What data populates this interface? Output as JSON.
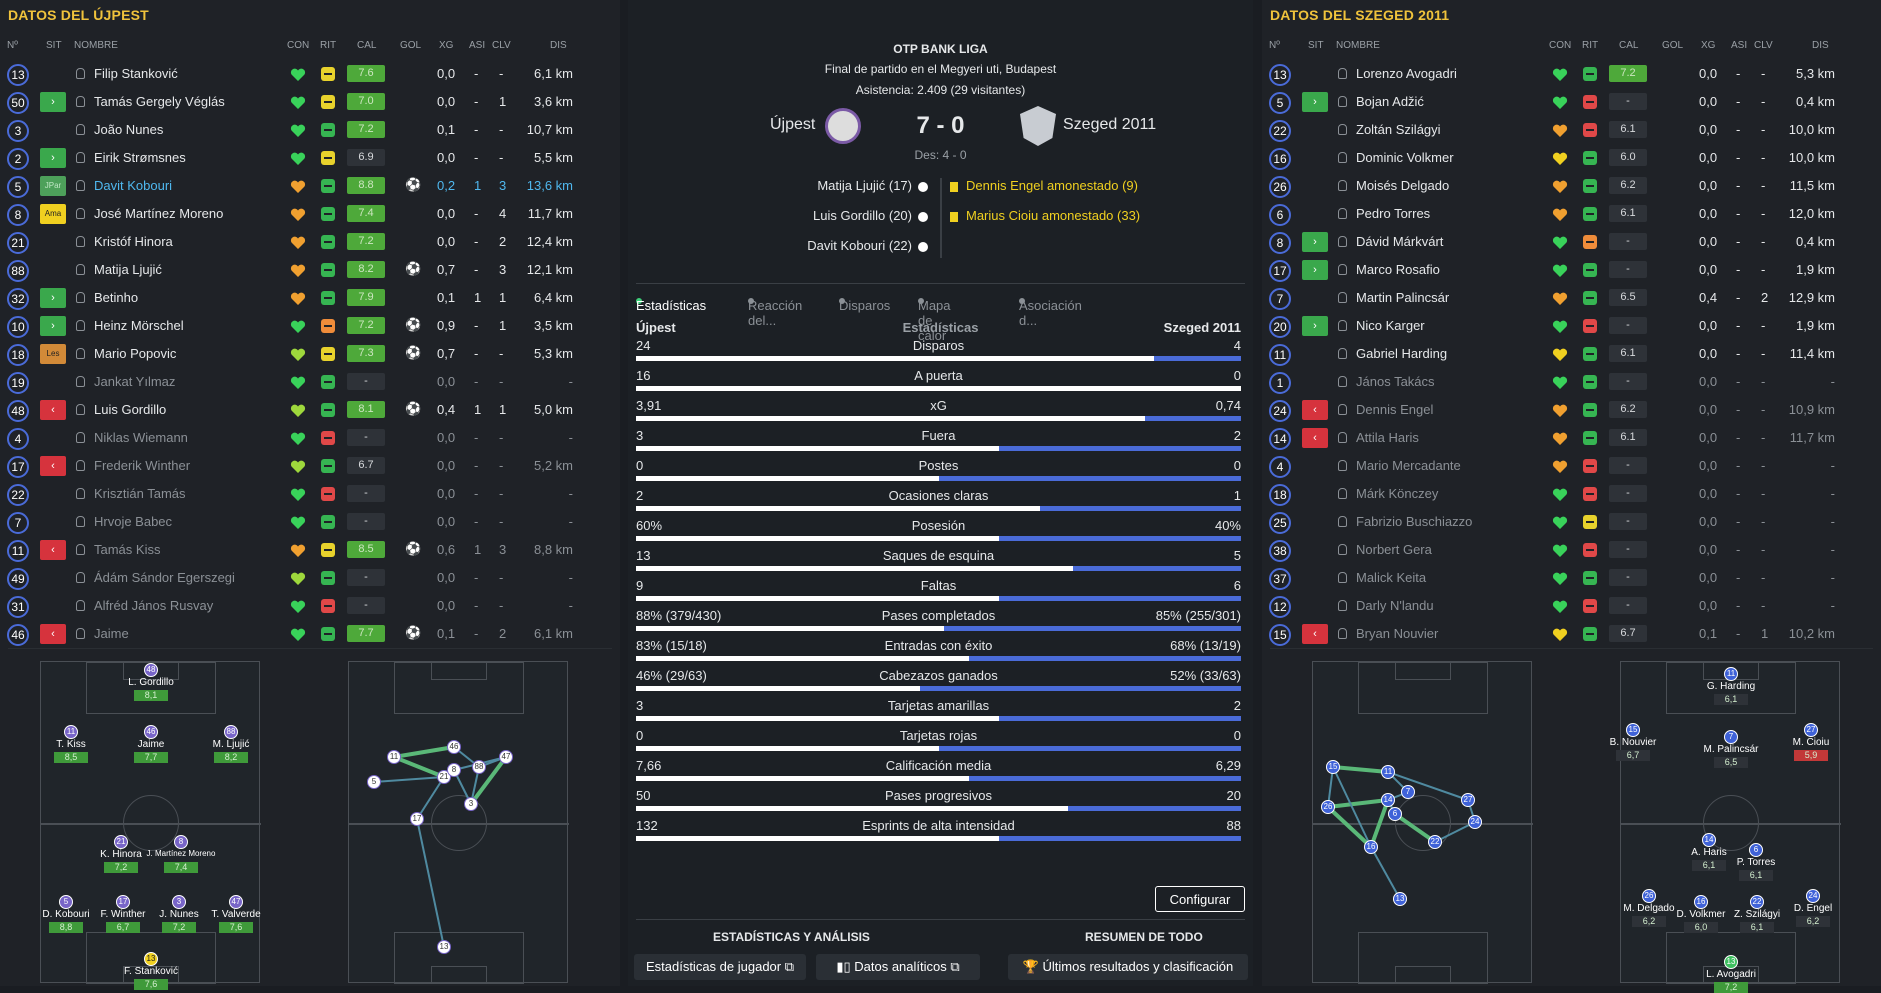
{
  "left": {
    "title": "DATOS DEL ÚJPEST",
    "headers": {
      "no": "Nº",
      "sit": "SIT",
      "name": "NOMBRE",
      "con": "CON",
      "rit": "RIT",
      "cal": "CAL",
      "gol": "GOL",
      "xg": "XG",
      "asi": "ASI",
      "clv": "CLV",
      "dis": "DIS"
    },
    "players": [
      {
        "num": "13",
        "sit": "",
        "name": "Filip Stanković",
        "con": "green",
        "rit": "y",
        "cal": "7.6",
        "gol": "",
        "xg": "0,0",
        "asi": "-",
        "clv": "-",
        "dis": "6,1 km",
        "dim": false
      },
      {
        "num": "50",
        "sit": "in",
        "name": "Tamás Gergely Véglás",
        "con": "green",
        "rit": "y",
        "cal": "7.0",
        "gol": "",
        "xg": "0,0",
        "asi": "-",
        "clv": "1",
        "dis": "3,6 km",
        "dim": false
      },
      {
        "num": "3",
        "sit": "",
        "name": "João Nunes",
        "con": "green",
        "rit": "g",
        "cal": "7.2",
        "gol": "",
        "xg": "0,1",
        "asi": "-",
        "clv": "-",
        "dis": "10,7 km",
        "dim": false
      },
      {
        "num": "2",
        "sit": "in",
        "name": "Eirik Strømsnes",
        "con": "green",
        "rit": "y",
        "cal": "6.9",
        "calc": "d",
        "gol": "",
        "xg": "0,0",
        "asi": "-",
        "clv": "-",
        "dis": "5,5 km",
        "dim": false
      },
      {
        "num": "5",
        "sit": "JPar",
        "name": "Davit Kobouri",
        "con": "orange",
        "rit": "g",
        "cal": "8.8",
        "gol": "⚽",
        "xg": "0,2",
        "asi": "1",
        "clv": "3",
        "dis": "13,6 km",
        "dim": false,
        "hl": true
      },
      {
        "num": "8",
        "sit": "Ama",
        "name": "José Martínez Moreno",
        "con": "orange",
        "rit": "g",
        "cal": "7.4",
        "gol": "",
        "xg": "0,0",
        "asi": "-",
        "clv": "4",
        "dis": "11,7 km",
        "dim": false
      },
      {
        "num": "21",
        "sit": "",
        "name": "Kristóf Hinora",
        "con": "orange",
        "rit": "g",
        "cal": "7.2",
        "gol": "",
        "xg": "0,0",
        "asi": "-",
        "clv": "2",
        "dis": "12,4 km",
        "dim": false
      },
      {
        "num": "88",
        "sit": "",
        "name": "Matija Ljujić",
        "con": "orange",
        "rit": "g",
        "cal": "8.2",
        "gol": "⚽",
        "xg": "0,7",
        "asi": "-",
        "clv": "3",
        "dis": "12,1 km",
        "dim": false
      },
      {
        "num": "32",
        "sit": "in",
        "name": "Betinho",
        "con": "orange",
        "rit": "g",
        "cal": "7.9",
        "gol": "",
        "xg": "0,1",
        "asi": "1",
        "clv": "1",
        "dis": "6,4 km",
        "dim": false
      },
      {
        "num": "10",
        "sit": "in",
        "name": "Heinz Mörschel",
        "con": "green",
        "rit": "o",
        "cal": "7.2",
        "gol": "⚽",
        "xg": "0,9",
        "asi": "-",
        "clv": "1",
        "dis": "3,5 km",
        "dim": false
      },
      {
        "num": "18",
        "sit": "Les",
        "name": "Mario Popovic",
        "con": "lime",
        "rit": "y",
        "cal": "7.3",
        "gol": "⚽",
        "xg": "0,7",
        "asi": "-",
        "clv": "-",
        "dis": "5,3 km",
        "dim": false
      },
      {
        "num": "19",
        "sit": "",
        "name": "Jankat Yılmaz",
        "con": "green",
        "rit": "g",
        "cal": "-",
        "calc": "d",
        "gol": "",
        "xg": "0,0",
        "asi": "-",
        "clv": "-",
        "dis": "-",
        "dim": true
      },
      {
        "num": "48",
        "sit": "out",
        "name": "Luis Gordillo",
        "con": "lime",
        "rit": "g",
        "cal": "8.1",
        "gol": "⚽",
        "xg": "0,4",
        "asi": "1",
        "clv": "1",
        "dis": "5,0 km",
        "dim": false
      },
      {
        "num": "4",
        "sit": "",
        "name": "Niklas Wiemann",
        "con": "green",
        "rit": "r",
        "cal": "-",
        "calc": "d",
        "gol": "",
        "xg": "0,0",
        "asi": "-",
        "clv": "-",
        "dis": "-",
        "dim": true
      },
      {
        "num": "17",
        "sit": "out",
        "name": "Frederik Winther",
        "con": "lime",
        "rit": "g",
        "cal": "6.7",
        "calc": "d",
        "gol": "",
        "xg": "0,0",
        "asi": "-",
        "clv": "-",
        "dis": "5,2 km",
        "dim": true
      },
      {
        "num": "22",
        "sit": "",
        "name": "Krisztián Tamás",
        "con": "green",
        "rit": "r",
        "cal": "-",
        "calc": "d",
        "gol": "",
        "xg": "0,0",
        "asi": "-",
        "clv": "-",
        "dis": "-",
        "dim": true
      },
      {
        "num": "7",
        "sit": "",
        "name": "Hrvoje Babec",
        "con": "green",
        "rit": "g",
        "cal": "-",
        "calc": "d",
        "gol": "",
        "xg": "0,0",
        "asi": "-",
        "clv": "-",
        "dis": "-",
        "dim": true
      },
      {
        "num": "11",
        "sit": "out",
        "name": "Tamás Kiss",
        "con": "orange",
        "rit": "y",
        "cal": "8.5",
        "gol": "⚽",
        "xg": "0,6",
        "asi": "1",
        "clv": "3",
        "dis": "8,8 km",
        "dim": true
      },
      {
        "num": "49",
        "sit": "",
        "name": "Ádám Sándor Egerszegi",
        "con": "lime",
        "rit": "g",
        "cal": "-",
        "calc": "d",
        "gol": "",
        "xg": "0,0",
        "asi": "-",
        "clv": "-",
        "dis": "-",
        "dim": true
      },
      {
        "num": "31",
        "sit": "",
        "name": "Alfréd János Rusvay",
        "con": "green",
        "rit": "r",
        "cal": "-",
        "calc": "d",
        "gol": "",
        "xg": "0,0",
        "asi": "-",
        "clv": "-",
        "dis": "-",
        "dim": true
      },
      {
        "num": "46",
        "sit": "out",
        "name": "Jaime",
        "con": "green",
        "rit": "g",
        "cal": "7.7",
        "gol": "⚽",
        "xg": "0,1",
        "asi": "-",
        "clv": "2",
        "dis": "6,1 km",
        "dim": true
      }
    ],
    "formation": [
      {
        "num": "48",
        "name": "L. Gordillo",
        "rat": "8,1"
      },
      {
        "num": "11",
        "name": "T. Kiss",
        "rat": "8,5"
      },
      {
        "num": "46",
        "name": "Jaime",
        "rat": "7,7"
      },
      {
        "num": "88",
        "name": "M. Ljujić",
        "rat": "8,2"
      },
      {
        "num": "21",
        "name": "K. Hinora",
        "rat": "7,2"
      },
      {
        "num": "8",
        "name": "J. Martínez Moreno",
        "rat": "7,4"
      },
      {
        "num": "5",
        "name": "D. Kobouri",
        "rat": "8,8"
      },
      {
        "num": "17",
        "name": "F. Winther",
        "rat": "6,7"
      },
      {
        "num": "3",
        "name": "J. Nunes",
        "rat": "7,2"
      },
      {
        "num": "47",
        "name": "T. Valverde",
        "rat": "7,6"
      },
      {
        "num": "13",
        "name": "F. Stanković",
        "rat": "7,6"
      }
    ],
    "passmap": [
      "11",
      "46",
      "88",
      "47",
      "21",
      "8",
      "5",
      "3",
      "17",
      "13"
    ]
  },
  "center": {
    "league": "OTP BANK LIGA",
    "subtitle": "Final de partido en el Megyeri uti, Budapest",
    "attendance": "Asistencia: 2.409 (29 visitantes)",
    "home": "Újpest",
    "away": "Szeged 2011",
    "score": "7 - 0",
    "ht": "Des: 4 - 0",
    "home_events": [
      "Matija Ljujić (17)",
      "Luis Gordillo (20)",
      "Davit Kobouri (22)"
    ],
    "away_events": [
      "Dennis Engel amonestado (9)",
      "Marius Cioiu amonestado (33)"
    ],
    "tabs": [
      "Estadísticas",
      "Reacción del...",
      "Disparos",
      "Mapa de calor",
      "Asociación d..."
    ],
    "stats_home": "Újpest",
    "stats_title": "Estadísticas",
    "stats_away": "Szeged 2011",
    "stats": [
      {
        "l": "24",
        "label": "Disparos",
        "r": "4",
        "frac": 0.857
      },
      {
        "l": "16",
        "label": "A puerta",
        "r": "0",
        "frac": 1.0
      },
      {
        "l": "3,91",
        "label": "xG",
        "r": "0,74",
        "frac": 0.841
      },
      {
        "l": "3",
        "label": "Fuera",
        "r": "2",
        "frac": 0.6
      },
      {
        "l": "0",
        "label": "Postes",
        "r": "0",
        "frac": 0.5
      },
      {
        "l": "2",
        "label": "Ocasiones claras",
        "r": "1",
        "frac": 0.667
      },
      {
        "l": "60%",
        "label": "Posesión",
        "r": "40%",
        "frac": 0.6
      },
      {
        "l": "13",
        "label": "Saques de esquina",
        "r": "5",
        "frac": 0.722
      },
      {
        "l": "9",
        "label": "Faltas",
        "r": "6",
        "frac": 0.6
      },
      {
        "l": "88% (379/430)",
        "label": "Pases completados",
        "r": "85% (255/301)",
        "frac": 0.509
      },
      {
        "l": "83% (15/18)",
        "label": "Entradas con éxito",
        "r": "68% (13/19)",
        "frac": 0.55
      },
      {
        "l": "46% (29/63)",
        "label": "Cabezazos ganados",
        "r": "52% (33/63)",
        "frac": 0.47
      },
      {
        "l": "3",
        "label": "Tarjetas amarillas",
        "r": "2",
        "frac": 0.6
      },
      {
        "l": "0",
        "label": "Tarjetas rojas",
        "r": "0",
        "frac": 0.5
      },
      {
        "l": "7,66",
        "label": "Calificación media",
        "r": "6,29",
        "frac": 0.55
      },
      {
        "l": "50",
        "label": "Pases progresivos",
        "r": "20",
        "frac": 0.714
      },
      {
        "l": "132",
        "label": "Esprints de alta intensidad",
        "r": "88",
        "frac": 0.6
      }
    ],
    "configure": "Configurar",
    "section_left": "ESTADÍSTICAS Y ANÁLISIS",
    "section_right": "RESUMEN DE TODO",
    "btn_players": "Estadísticas de jugador",
    "btn_data": "Datos analíticos",
    "btn_results": "Últimos resultados y clasificación"
  },
  "right": {
    "title": "DATOS DEL SZEGED 2011",
    "players": [
      {
        "num": "13",
        "sit": "",
        "name": "Lorenzo Avogadri",
        "con": "green",
        "rit": "g",
        "cal": "7.2",
        "xg": "0,0",
        "asi": "-",
        "clv": "-",
        "dis": "5,3 km",
        "dim": false
      },
      {
        "num": "5",
        "sit": "in",
        "name": "Bojan Adžić",
        "con": "green",
        "rit": "r",
        "cal": "-",
        "calc": "d",
        "xg": "0,0",
        "asi": "-",
        "clv": "-",
        "dis": "0,4 km",
        "dim": false
      },
      {
        "num": "22",
        "sit": "",
        "name": "Zoltán Szilágyi",
        "con": "orange",
        "rit": "r",
        "cal": "6.1",
        "calc": "d",
        "xg": "0,0",
        "asi": "-",
        "clv": "-",
        "dis": "10,0 km",
        "dim": false
      },
      {
        "num": "16",
        "sit": "",
        "name": "Dominic Volkmer",
        "con": "yellow",
        "rit": "g",
        "cal": "6.0",
        "calc": "d",
        "xg": "0,0",
        "asi": "-",
        "clv": "-",
        "dis": "10,0 km",
        "dim": false
      },
      {
        "num": "26",
        "sit": "",
        "name": "Moisés Delgado",
        "con": "orange",
        "rit": "g",
        "cal": "6.2",
        "calc": "d",
        "xg": "0,0",
        "asi": "-",
        "clv": "-",
        "dis": "11,5 km",
        "dim": false
      },
      {
        "num": "6",
        "sit": "",
        "name": "Pedro Torres",
        "con": "orange",
        "rit": "g",
        "cal": "6.1",
        "calc": "d",
        "xg": "0,0",
        "asi": "-",
        "clv": "-",
        "dis": "12,0 km",
        "dim": false
      },
      {
        "num": "8",
        "sit": "in",
        "name": "Dávid Márkvárt",
        "con": "green",
        "rit": "o",
        "cal": "-",
        "calc": "d",
        "xg": "0,0",
        "asi": "-",
        "clv": "-",
        "dis": "0,4 km",
        "dim": false
      },
      {
        "num": "17",
        "sit": "in",
        "name": "Marco Rosafio",
        "con": "green",
        "rit": "g",
        "cal": "-",
        "calc": "d",
        "xg": "0,0",
        "asi": "-",
        "clv": "-",
        "dis": "1,9 km",
        "dim": false
      },
      {
        "num": "7",
        "sit": "",
        "name": "Martin Palincsár",
        "con": "orange",
        "rit": "g",
        "cal": "6.5",
        "calc": "d",
        "xg": "0,4",
        "asi": "-",
        "clv": "2",
        "dis": "12,9 km",
        "dim": false
      },
      {
        "num": "20",
        "sit": "in",
        "name": "Nico Karger",
        "con": "green",
        "rit": "r",
        "cal": "-",
        "calc": "d",
        "xg": "0,0",
        "asi": "-",
        "clv": "-",
        "dis": "1,9 km",
        "dim": false
      },
      {
        "num": "11",
        "sit": "",
        "name": "Gabriel Harding",
        "con": "yellow",
        "rit": "g",
        "cal": "6.1",
        "calc": "d",
        "xg": "0,0",
        "asi": "-",
        "clv": "-",
        "dis": "11,4 km",
        "dim": false
      },
      {
        "num": "1",
        "sit": "",
        "name": "János Takács",
        "con": "green",
        "rit": "g",
        "cal": "-",
        "calc": "d",
        "xg": "0,0",
        "asi": "-",
        "clv": "-",
        "dis": "-",
        "dim": true
      },
      {
        "num": "24",
        "sit": "out",
        "name": "Dennis Engel",
        "con": "orange",
        "rit": "g",
        "cal": "6.2",
        "calc": "d",
        "xg": "0,0",
        "asi": "-",
        "clv": "-",
        "dis": "10,9 km",
        "dim": true
      },
      {
        "num": "14",
        "sit": "out",
        "name": "Attila Haris",
        "con": "orange",
        "rit": "g",
        "cal": "6.1",
        "calc": "d",
        "xg": "0,0",
        "asi": "-",
        "clv": "-",
        "dis": "11,7 km",
        "dim": true
      },
      {
        "num": "4",
        "sit": "",
        "name": "Mario Mercadante",
        "con": "orange",
        "rit": "r",
        "cal": "-",
        "calc": "d",
        "xg": "0,0",
        "asi": "-",
        "clv": "-",
        "dis": "-",
        "dim": true
      },
      {
        "num": "18",
        "sit": "",
        "name": "Márk Könczey",
        "con": "green",
        "rit": "r",
        "cal": "-",
        "calc": "d",
        "xg": "0,0",
        "asi": "-",
        "clv": "-",
        "dis": "-",
        "dim": true
      },
      {
        "num": "25",
        "sit": "",
        "name": "Fabrizio Buschiazzo",
        "con": "green",
        "rit": "y",
        "cal": "-",
        "calc": "d",
        "xg": "0,0",
        "asi": "-",
        "clv": "-",
        "dis": "-",
        "dim": true
      },
      {
        "num": "38",
        "sit": "",
        "name": "Norbert Gera",
        "con": "green",
        "rit": "r",
        "cal": "-",
        "calc": "d",
        "xg": "0,0",
        "asi": "-",
        "clv": "-",
        "dis": "-",
        "dim": true
      },
      {
        "num": "37",
        "sit": "",
        "name": "Malick Keita",
        "con": "green",
        "rit": "g",
        "cal": "-",
        "calc": "d",
        "xg": "0,0",
        "asi": "-",
        "clv": "-",
        "dis": "-",
        "dim": true
      },
      {
        "num": "12",
        "sit": "",
        "name": "Darly N'landu",
        "con": "green",
        "rit": "r",
        "cal": "-",
        "calc": "d",
        "xg": "0,0",
        "asi": "-",
        "clv": "-",
        "dis": "-",
        "dim": true
      },
      {
        "num": "15",
        "sit": "out",
        "name": "Bryan Nouvier",
        "con": "yellow",
        "rit": "g",
        "cal": "6.7",
        "calc": "d",
        "xg": "0,1",
        "asi": "-",
        "clv": "1",
        "dis": "10,2 km",
        "dim": true
      }
    ],
    "formation": [
      {
        "num": "11",
        "name": "G. Harding",
        "rat": "6,1"
      },
      {
        "num": "15",
        "name": "B. Nouvier",
        "rat": "6,7"
      },
      {
        "num": "7",
        "name": "M. Palincsár",
        "rat": "6,5"
      },
      {
        "num": "27",
        "name": "M. Cioiu",
        "rat": "5,9"
      },
      {
        "num": "14",
        "name": "A. Haris",
        "rat": "6,1"
      },
      {
        "num": "6",
        "name": "P. Torres",
        "rat": "6,1"
      },
      {
        "num": "26",
        "name": "M. Delgado",
        "rat": "6,2"
      },
      {
        "num": "16",
        "name": "D. Volkmer",
        "rat": "6,0"
      },
      {
        "num": "22",
        "name": "Z. Szilágyi",
        "rat": "6,1"
      },
      {
        "num": "24",
        "name": "D. Engel",
        "rat": "6,2"
      },
      {
        "num": "13",
        "name": "L. Avogadri",
        "rat": "7,2"
      }
    ],
    "passmap": [
      "15",
      "11",
      "7",
      "26",
      "14",
      "6",
      "27",
      "24",
      "22",
      "16",
      "13"
    ]
  },
  "colors": {
    "accent": "#f0c33c",
    "blue": "#4a6bd8",
    "green": "#36b552",
    "red": "#e04848"
  }
}
